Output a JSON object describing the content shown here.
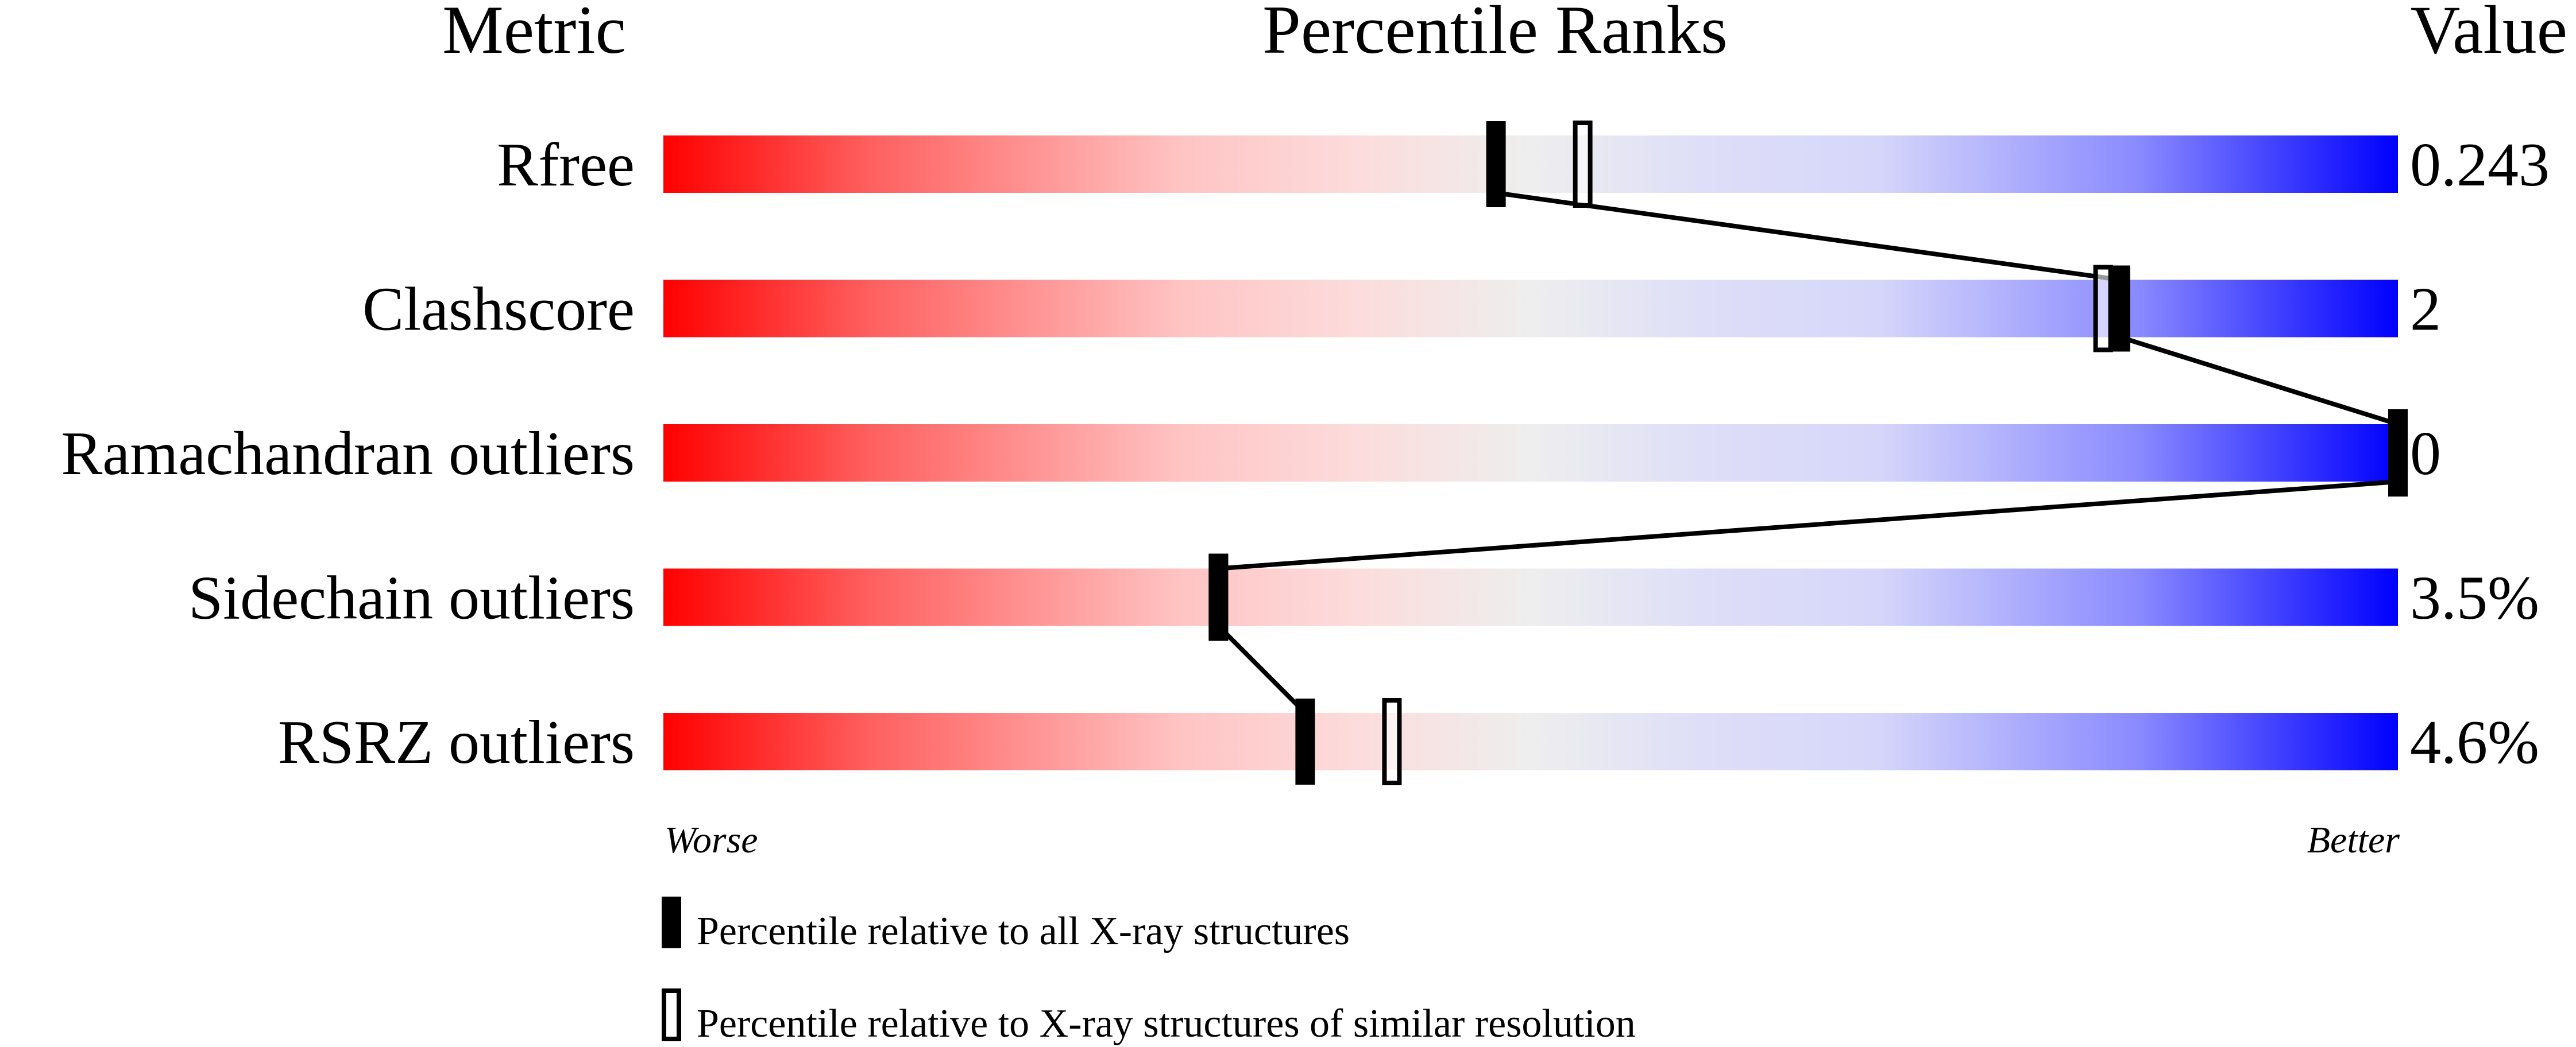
{
  "chart_data": {
    "type": "percentile-bar",
    "headers": {
      "metric": "Metric",
      "percentile": "Percentile Ranks",
      "value": "Value"
    },
    "axis_range": [
      0,
      100
    ],
    "scale_labels": {
      "left": "Worse",
      "right": "Better"
    },
    "gradient_colors": {
      "worse": "#ff0000",
      "middle": "#eeeeee",
      "better": "#0000ff"
    },
    "rows": [
      {
        "metric": "Rfree",
        "value": "0.243",
        "percentile_all": 48,
        "percentile_similar": 53
      },
      {
        "metric": "Clashscore",
        "value": "2",
        "percentile_all": 84,
        "percentile_similar": 83
      },
      {
        "metric": "Ramachandran outliers",
        "value": "0",
        "percentile_all": 100,
        "percentile_similar": 100
      },
      {
        "metric": "Sidechain outliers",
        "value": "3.5%",
        "percentile_all": 32,
        "percentile_similar": 32
      },
      {
        "metric": "RSRZ outliers",
        "value": "4.6%",
        "percentile_all": 37,
        "percentile_similar": 42
      }
    ],
    "legend": [
      {
        "marker": "filled",
        "label": "Percentile relative to all X-ray structures"
      },
      {
        "marker": "hollow",
        "label": "Percentile relative to X-ray structures of similar resolution"
      }
    ]
  }
}
